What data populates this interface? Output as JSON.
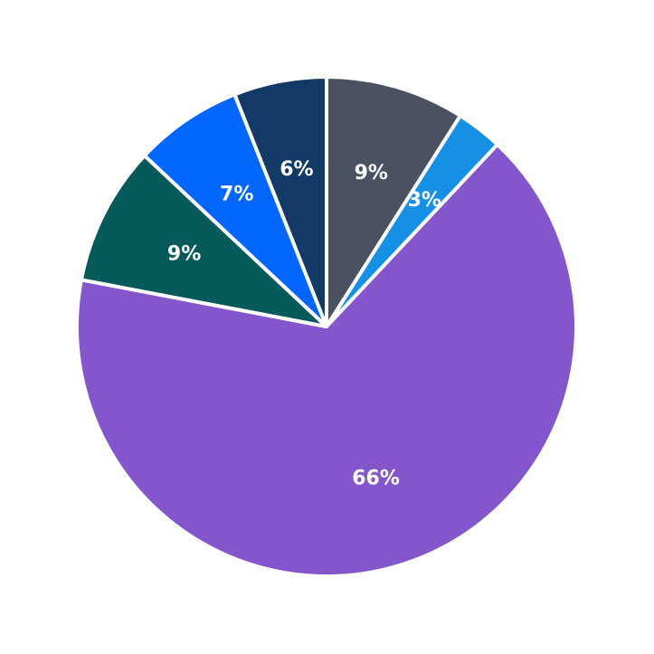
{
  "chart_data": {
    "type": "pie",
    "start_angle_deg": 90,
    "direction": "clockwise",
    "slices": [
      {
        "value": 9,
        "label": "9%",
        "color": "#4a5261"
      },
      {
        "value": 3,
        "label": "3%",
        "color": "#1590e5"
      },
      {
        "value": 66,
        "label": "66%",
        "color": "#8456cc"
      },
      {
        "value": 9,
        "label": "9%",
        "color": "#065a59"
      },
      {
        "value": 7,
        "label": "7%",
        "color": "#0366fe"
      },
      {
        "value": 6,
        "label": "6%",
        "color": "#133a66"
      }
    ]
  }
}
